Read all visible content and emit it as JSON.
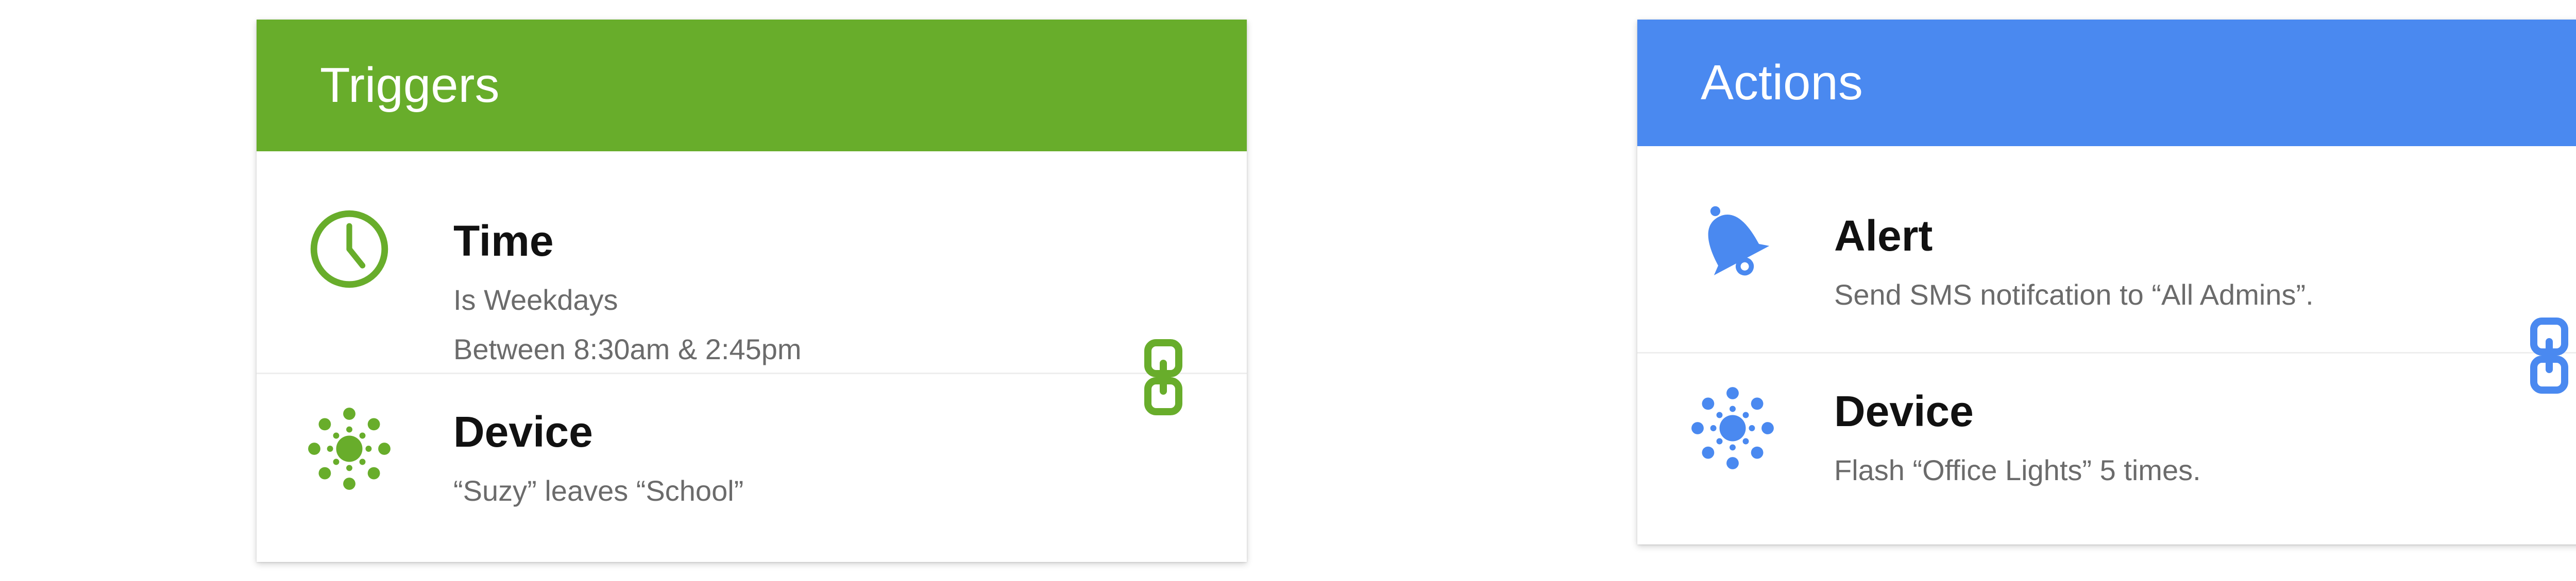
{
  "colors": {
    "triggers_accent": "#68AD2B",
    "actions_accent": "#4A89F0",
    "title_text": "#111111",
    "detail_text": "#6B6B6B"
  },
  "triggers": {
    "title": "Triggers",
    "link_icon": "chain-link-icon",
    "items": [
      {
        "icon": "clock-icon",
        "title": "Time",
        "lines": [
          "Is Weekdays",
          "Between 8:30am & 2:45pm"
        ]
      },
      {
        "icon": "device-icon",
        "title": "Device",
        "lines": [
          "“Suzy” leaves “School”"
        ]
      }
    ]
  },
  "actions": {
    "title": "Actions",
    "link_icon": "chain-link-icon",
    "items": [
      {
        "icon": "bell-icon",
        "title": "Alert",
        "lines": [
          "Send SMS notifcation to “All Admins”."
        ]
      },
      {
        "icon": "device-icon",
        "title": "Device",
        "lines": [
          "Flash “Office Lights” 5 times."
        ]
      }
    ]
  }
}
